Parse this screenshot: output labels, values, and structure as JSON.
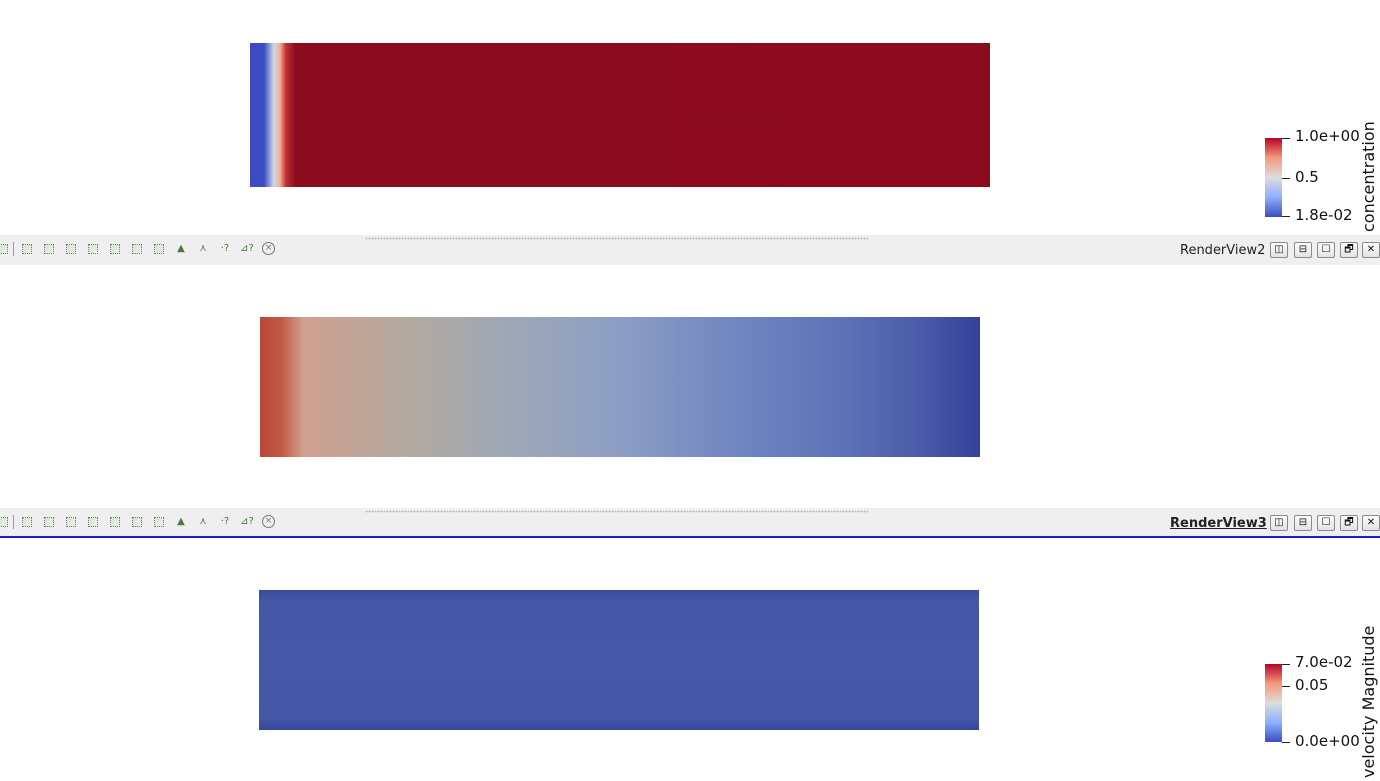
{
  "views": [
    {
      "colorbar": {
        "title": "concentration",
        "max_label": "1.0e+00",
        "mid_label": "0.5",
        "min_label": "1.8e-02"
      }
    },
    {
      "toolbar": {
        "title": "RenderView2",
        "active": false
      }
    },
    {
      "toolbar": {
        "title": "RenderView3",
        "active": true
      },
      "colorbar": {
        "title": "velocity Magnitude",
        "max_label": "7.0e-02",
        "mid_label": "0.05",
        "min_label": "0.0e+00"
      }
    }
  ],
  "toolbar_icons": [
    "camera-icon",
    "select-cells-icon",
    "select-points-icon",
    "select-frustum-icon",
    "select-polygon-icon",
    "select-blocks-icon",
    "interactive-select-icon",
    "clear-selection-icon",
    "grow-selection-icon",
    "shrink-selection-icon",
    "hover-query-icon",
    "find-data-icon",
    "clear-icon"
  ],
  "view_buttons": {
    "split_horizontal": "◫",
    "split_vertical": "⊟",
    "maximize": "☐",
    "restore": "🗗",
    "close": "✕"
  },
  "colormap": {
    "low": "#3b4cc0",
    "mid": "#dddddd",
    "high": "#b40426"
  }
}
